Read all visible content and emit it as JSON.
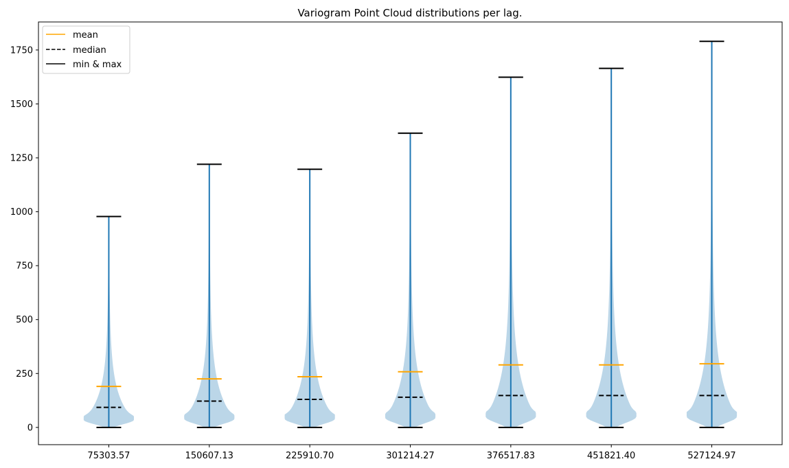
{
  "chart_data": {
    "type": "violin",
    "title": "Variogram Point Cloud distributions per lag.",
    "xlabel": "",
    "ylabel": "",
    "categories": [
      "75303.57",
      "150607.13",
      "225910.70",
      "301214.27",
      "376517.83",
      "451821.40",
      "527124.97"
    ],
    "y_ticks": [
      0,
      250,
      500,
      750,
      1000,
      1250,
      1500,
      1750
    ],
    "ylim": [
      -80,
      1880
    ],
    "grid": false,
    "legend_position": "upper-left",
    "legend": [
      {
        "label": "mean",
        "style": "solid",
        "color": "#ffa500"
      },
      {
        "label": "median",
        "style": "dashed",
        "color": "#000000"
      },
      {
        "label": "min & max",
        "style": "solid",
        "color": "#000000"
      }
    ],
    "colors": {
      "body": "#1f77b4",
      "body_alpha": 0.3,
      "center_line": "#1f77b4",
      "mean": "#ffa500",
      "median": "#000000",
      "extrema": "#000000"
    },
    "series": [
      {
        "min": 0,
        "max": 978,
        "mean": 190,
        "median": 93,
        "peak_value": 35,
        "max_half_width": 0.25
      },
      {
        "min": 0,
        "max": 1220,
        "mean": 225,
        "median": 122,
        "peak_value": 40,
        "max_half_width": 0.25
      },
      {
        "min": 0,
        "max": 1197,
        "mean": 235,
        "median": 130,
        "peak_value": 40,
        "max_half_width": 0.25
      },
      {
        "min": 0,
        "max": 1364,
        "mean": 258,
        "median": 140,
        "peak_value": 45,
        "max_half_width": 0.25
      },
      {
        "min": 0,
        "max": 1624,
        "mean": 290,
        "median": 148,
        "peak_value": 50,
        "max_half_width": 0.25
      },
      {
        "min": 0,
        "max": 1665,
        "mean": 290,
        "median": 148,
        "peak_value": 50,
        "max_half_width": 0.25
      },
      {
        "min": 0,
        "max": 1790,
        "mean": 295,
        "median": 148,
        "peak_value": 50,
        "max_half_width": 0.25
      }
    ]
  }
}
